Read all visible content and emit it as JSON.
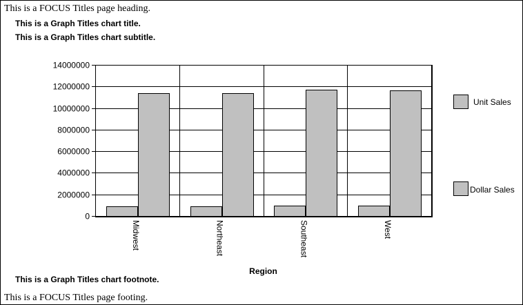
{
  "page": {
    "heading": "This is a FOCUS Titles page heading.",
    "footing": "This is a FOCUS Titles page footing."
  },
  "chart_data": {
    "type": "bar",
    "title": "This is a Graph Titles chart title.",
    "subtitle": "This is a Graph Titles chart subtitle.",
    "footnote": "This is a Graph Titles chart footnote.",
    "xlabel": "Region",
    "ylabel": "",
    "categories": [
      "Midwest",
      "Northeast",
      "Southeast",
      "West"
    ],
    "series": [
      {
        "name": "Unit Sales",
        "values": [
          890000,
          880000,
          940000,
          940000
        ]
      },
      {
        "name": "Dollar Sales",
        "values": [
          11400000,
          11400000,
          11700000,
          11650000
        ]
      }
    ],
    "ylim": [
      0,
      14000000
    ],
    "yticks": [
      0,
      2000000,
      4000000,
      6000000,
      8000000,
      10000000,
      12000000,
      14000000
    ],
    "grid": true,
    "legend_position": "right",
    "colors": {
      "bar_fill": "#c0c0c0",
      "outline": "#000000",
      "background": "#ffffff"
    }
  }
}
